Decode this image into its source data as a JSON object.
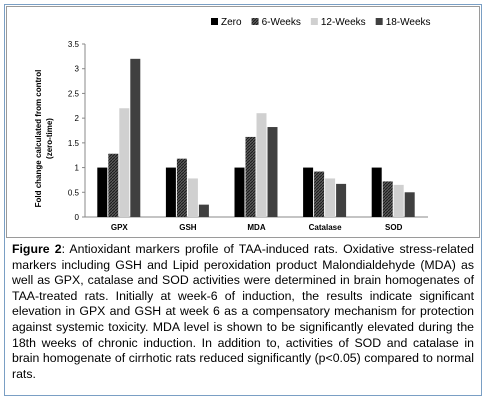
{
  "chart_data": {
    "type": "bar",
    "ylabel": "Fold change calculated from control (zero-time)",
    "ylim": [
      0,
      3.5
    ],
    "yticks": [
      "0",
      "0.5",
      "1",
      "1.5",
      "2",
      "2.5",
      "3",
      "3.5"
    ],
    "categories": [
      "GPX",
      "GSH",
      "MDA",
      "Catalase",
      "SOD"
    ],
    "series": [
      {
        "name": "Zero",
        "values": [
          1,
          1,
          1,
          1,
          1
        ],
        "color": "#000000",
        "pattern": "solid"
      },
      {
        "name": "6-Weeks",
        "values": [
          1.28,
          1.18,
          1.62,
          0.92,
          0.72
        ],
        "color": "#3a3a3a",
        "pattern": "hatched"
      },
      {
        "name": "12-Weeks",
        "values": [
          2.2,
          0.78,
          2.1,
          0.78,
          0.65
        ],
        "color": "#d0d0d0",
        "pattern": "solid"
      },
      {
        "name": "18-Weeks",
        "values": [
          3.2,
          0.25,
          1.82,
          0.67,
          0.5
        ],
        "color": "#404040",
        "pattern": "solid"
      }
    ],
    "legend_position": "top-right",
    "grid": false
  },
  "caption": {
    "label": "Figure 2",
    "text": ": Antioxidant markers profile of TAA-induced rats. Oxidative stress-related markers including GSH and Lipid peroxidation product Malondialdehyde (MDA) as well as GPX, catalase and SOD activities were determined in brain homogenates of TAA-treated rats. Initially at week-6 of induction, the results indicate significant elevation in GPX and GSH at week 6 as a compensatory mechanism for protection against systemic toxicity.  MDA level is shown to be significantly elevated during the 18th weeks of chronic induction. In addition to, activities of SOD and catalase in brain homogenate of cirrhotic rats reduced significantly (p<0.05) compared to normal rats."
  }
}
